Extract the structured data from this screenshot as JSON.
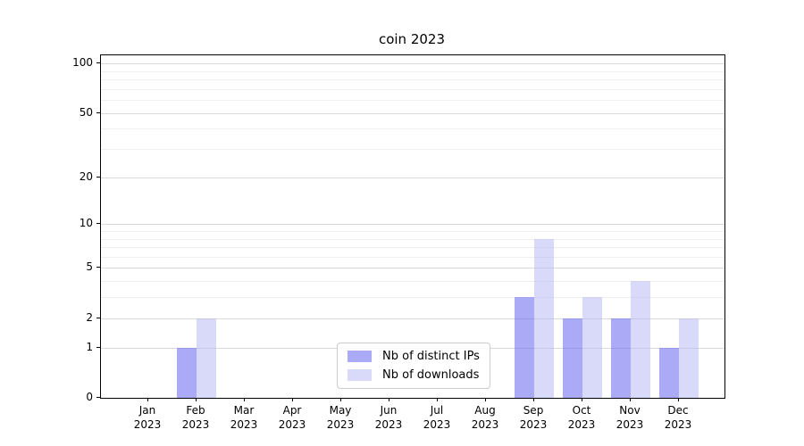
{
  "chart_data": {
    "type": "bar",
    "title": "coin 2023",
    "categories": [
      {
        "month": "Jan",
        "year": "2023"
      },
      {
        "month": "Feb",
        "year": "2023"
      },
      {
        "month": "Mar",
        "year": "2023"
      },
      {
        "month": "Apr",
        "year": "2023"
      },
      {
        "month": "May",
        "year": "2023"
      },
      {
        "month": "Jun",
        "year": "2023"
      },
      {
        "month": "Jul",
        "year": "2023"
      },
      {
        "month": "Aug",
        "year": "2023"
      },
      {
        "month": "Sep",
        "year": "2023"
      },
      {
        "month": "Oct",
        "year": "2023"
      },
      {
        "month": "Nov",
        "year": "2023"
      },
      {
        "month": "Dec",
        "year": "2023"
      }
    ],
    "series": [
      {
        "name": "Nb of distinct IPs",
        "color": "rgba(100,100,240,0.55)",
        "values": [
          0,
          1,
          0,
          0,
          0,
          0,
          0,
          0,
          3,
          2,
          2,
          1
        ]
      },
      {
        "name": "Nb of downloads",
        "color": "rgba(180,180,245,0.5)",
        "values": [
          0,
          2,
          0,
          0,
          0,
          0,
          0,
          0,
          8,
          3,
          4,
          2
        ]
      }
    ],
    "yscale": "log1p",
    "ylim": [
      0,
      112
    ],
    "yticks": [
      0,
      1,
      2,
      5,
      10,
      20,
      50,
      100
    ],
    "ytick_labels": [
      "0",
      "1",
      "2",
      "5",
      "10",
      "20",
      "50",
      "100"
    ],
    "yticks_minor": [
      3,
      4,
      6,
      7,
      8,
      9,
      30,
      40,
      60,
      70,
      80,
      90
    ],
    "grid": true,
    "legend_position": "lower center",
    "colors": {
      "grid_major": "#d9d9d9",
      "grid_minor": "#efefef",
      "spine": "#000000",
      "background": "#ffffff"
    }
  }
}
